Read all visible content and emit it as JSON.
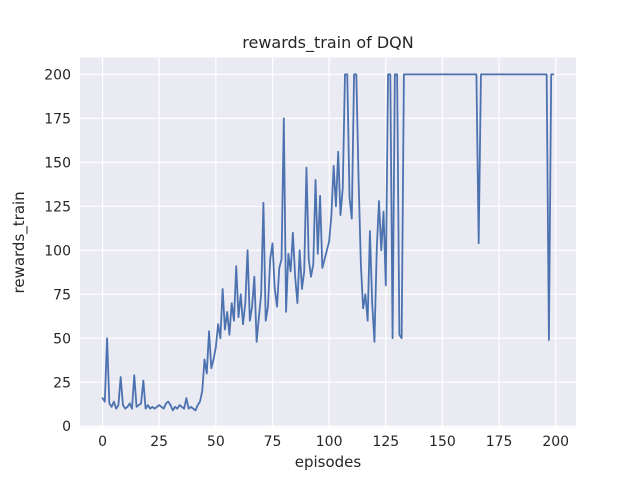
{
  "chart_data": {
    "type": "line",
    "title": "rewards_train of DQN",
    "xlabel": "episodes",
    "ylabel": "rewards_train",
    "x_start": 0,
    "x_step": 1,
    "n_points": 200,
    "values": [
      16,
      14,
      50,
      13,
      11,
      14,
      10,
      12,
      28,
      12,
      10,
      11,
      13,
      10,
      29,
      11,
      12,
      13,
      26,
      10,
      12,
      10,
      11,
      10,
      11,
      12,
      11,
      10,
      13,
      14,
      12,
      9,
      11,
      10,
      12,
      11,
      10,
      16,
      10,
      11,
      10,
      9,
      12,
      14,
      20,
      38,
      30,
      54,
      33,
      38,
      45,
      58,
      50,
      78,
      55,
      65,
      52,
      70,
      60,
      91,
      62,
      75,
      58,
      70,
      100,
      60,
      68,
      85,
      48,
      62,
      75,
      127,
      60,
      68,
      95,
      104,
      78,
      68,
      90,
      95,
      175,
      65,
      98,
      88,
      110,
      85,
      70,
      100,
      78,
      88,
      147,
      95,
      85,
      92,
      140,
      98,
      131,
      90,
      95,
      100,
      105,
      120,
      148,
      125,
      156,
      120,
      135,
      200,
      200,
      130,
      118,
      200,
      200,
      140,
      92,
      67,
      75,
      60,
      111,
      70,
      48,
      100,
      128,
      100,
      122,
      80,
      200,
      200,
      50,
      200,
      200,
      52,
      50,
      200,
      200,
      200,
      200,
      200,
      200,
      200,
      200,
      200,
      200,
      200,
      200,
      200,
      200,
      200,
      200,
      200,
      200,
      200,
      200,
      200,
      200,
      200,
      200,
      200,
      200,
      200,
      200,
      200,
      200,
      200,
      200,
      200,
      104,
      200,
      200,
      200,
      200,
      200,
      200,
      200,
      200,
      200,
      200,
      200,
      200,
      200,
      200,
      200,
      200,
      200,
      200,
      200,
      200,
      200,
      200,
      200,
      200,
      200,
      200,
      200,
      200,
      200,
      200,
      49,
      200,
      200
    ],
    "xlim": [
      -9.95,
      208.95
    ],
    "ylim": [
      -0.55,
      209.55
    ],
    "xticks": [
      0,
      25,
      50,
      75,
      100,
      125,
      150,
      175,
      200
    ],
    "yticks": [
      0,
      25,
      50,
      75,
      100,
      125,
      150,
      175,
      200
    ],
    "grid": true,
    "legend_position": "none",
    "colors": {
      "line": "#4c72b0",
      "axes_background": "#eaeaf2",
      "grid": "#ffffff",
      "text": "#262626",
      "figure_background": "#ffffff"
    }
  }
}
